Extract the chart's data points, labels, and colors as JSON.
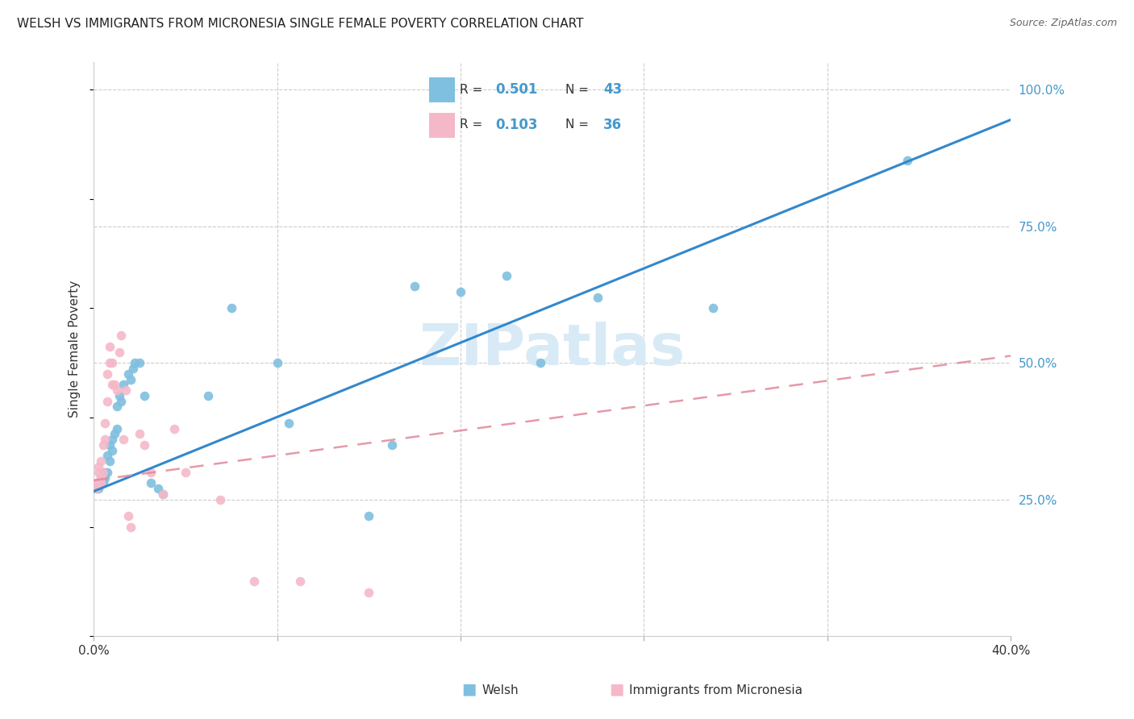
{
  "title": "WELSH VS IMMIGRANTS FROM MICRONESIA SINGLE FEMALE POVERTY CORRELATION CHART",
  "source": "Source: ZipAtlas.com",
  "ylabel": "Single Female Poverty",
  "legend_label1": "Welsh",
  "legend_label2": "Immigrants from Micronesia",
  "R1": "0.501",
  "N1": "43",
  "R2": "0.103",
  "N2": "36",
  "blue_scatter_color": "#7fbfdf",
  "pink_scatter_color": "#f5b8c8",
  "blue_line_color": "#3388cc",
  "pink_line_color": "#e08898",
  "watermark": "ZIPatlas",
  "welsh_x": [
    0.001,
    0.002,
    0.002,
    0.003,
    0.003,
    0.004,
    0.004,
    0.005,
    0.005,
    0.006,
    0.006,
    0.007,
    0.007,
    0.008,
    0.008,
    0.009,
    0.01,
    0.01,
    0.011,
    0.012,
    0.013,
    0.015,
    0.016,
    0.017,
    0.018,
    0.02,
    0.022,
    0.025,
    0.028,
    0.03,
    0.05,
    0.06,
    0.08,
    0.085,
    0.12,
    0.13,
    0.14,
    0.16,
    0.18,
    0.195,
    0.22,
    0.27,
    0.355
  ],
  "welsh_y": [
    0.27,
    0.27,
    0.28,
    0.28,
    0.29,
    0.28,
    0.3,
    0.29,
    0.3,
    0.3,
    0.33,
    0.32,
    0.35,
    0.34,
    0.36,
    0.37,
    0.38,
    0.42,
    0.44,
    0.43,
    0.46,
    0.48,
    0.47,
    0.49,
    0.5,
    0.5,
    0.44,
    0.28,
    0.27,
    0.26,
    0.44,
    0.6,
    0.5,
    0.39,
    0.22,
    0.35,
    0.64,
    0.63,
    0.66,
    0.5,
    0.62,
    0.6,
    0.87
  ],
  "micro_x": [
    0.001,
    0.001,
    0.002,
    0.002,
    0.002,
    0.003,
    0.003,
    0.003,
    0.004,
    0.004,
    0.005,
    0.005,
    0.006,
    0.006,
    0.007,
    0.007,
    0.008,
    0.008,
    0.009,
    0.01,
    0.011,
    0.012,
    0.013,
    0.014,
    0.015,
    0.016,
    0.02,
    0.022,
    0.025,
    0.03,
    0.035,
    0.04,
    0.055,
    0.07,
    0.09,
    0.12
  ],
  "micro_y": [
    0.27,
    0.28,
    0.28,
    0.3,
    0.31,
    0.28,
    0.29,
    0.32,
    0.3,
    0.35,
    0.36,
    0.39,
    0.43,
    0.48,
    0.5,
    0.53,
    0.5,
    0.46,
    0.46,
    0.45,
    0.52,
    0.55,
    0.36,
    0.45,
    0.22,
    0.2,
    0.37,
    0.35,
    0.3,
    0.26,
    0.38,
    0.3,
    0.25,
    0.1,
    0.1,
    0.08
  ],
  "xlim": [
    0.0,
    0.4
  ],
  "ylim": [
    0.0,
    1.05
  ],
  "xticks": [
    0.0,
    0.08,
    0.16,
    0.24,
    0.32,
    0.4
  ],
  "yticks_right": [
    0.25,
    0.5,
    0.75,
    1.0
  ],
  "ytick_labels_right": [
    "25.0%",
    "50.0%",
    "75.0%",
    "100.0%"
  ],
  "xtick_labels": [
    "0.0%",
    "",
    "",
    "",
    "",
    "40.0%"
  ],
  "blue_line_intercept": 0.265,
  "blue_line_slope": 1.7,
  "pink_line_intercept": 0.285,
  "pink_line_slope": 0.57
}
